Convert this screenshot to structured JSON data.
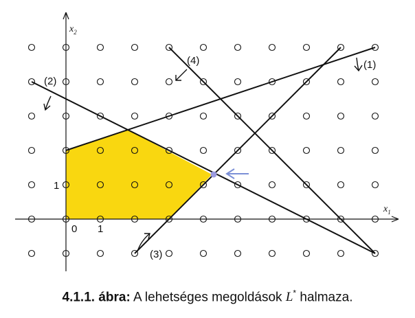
{
  "axes": {
    "x_label": "x",
    "x_sub": "1",
    "y_label": "x",
    "y_sub": "2"
  },
  "origin_label": "0",
  "tick_labels": {
    "x1": "1",
    "y1": "1"
  },
  "line_labels": [
    "(1)",
    "(2)",
    "(3)",
    "(4)"
  ],
  "lattice": {
    "x_min": -1,
    "x_max": 9,
    "y_min": -1,
    "y_max": 5
  },
  "feasible_region": {
    "vertices": [
      [
        0,
        0
      ],
      [
        3,
        0
      ],
      [
        4.25,
        1.3
      ],
      [
        1.8,
        2.6
      ],
      [
        0,
        2
      ]
    ],
    "color": "#f9d710"
  },
  "constraint_lines": [
    {
      "id": "1",
      "from": [
        0,
        2
      ],
      "to": [
        9,
        5
      ]
    },
    {
      "id": "2",
      "from": [
        -1,
        4
      ],
      "to": [
        9,
        -1
      ]
    },
    {
      "id": "3",
      "from": [
        2,
        -1
      ],
      "to": [
        8,
        5
      ]
    },
    {
      "id": "4",
      "from": [
        3,
        5
      ],
      "to": [
        9,
        -1
      ]
    }
  ],
  "optimum_point": {
    "x": 4.3,
    "y": 1.3,
    "color": "#9b9be0"
  },
  "arrow_color": "#7b8fd6",
  "caption": {
    "number": "4.1.1. ábra:",
    "text_before": "A lehetséges megoldások",
    "symbol": "L",
    "superscript": "*",
    "text_after": "halmaza."
  }
}
